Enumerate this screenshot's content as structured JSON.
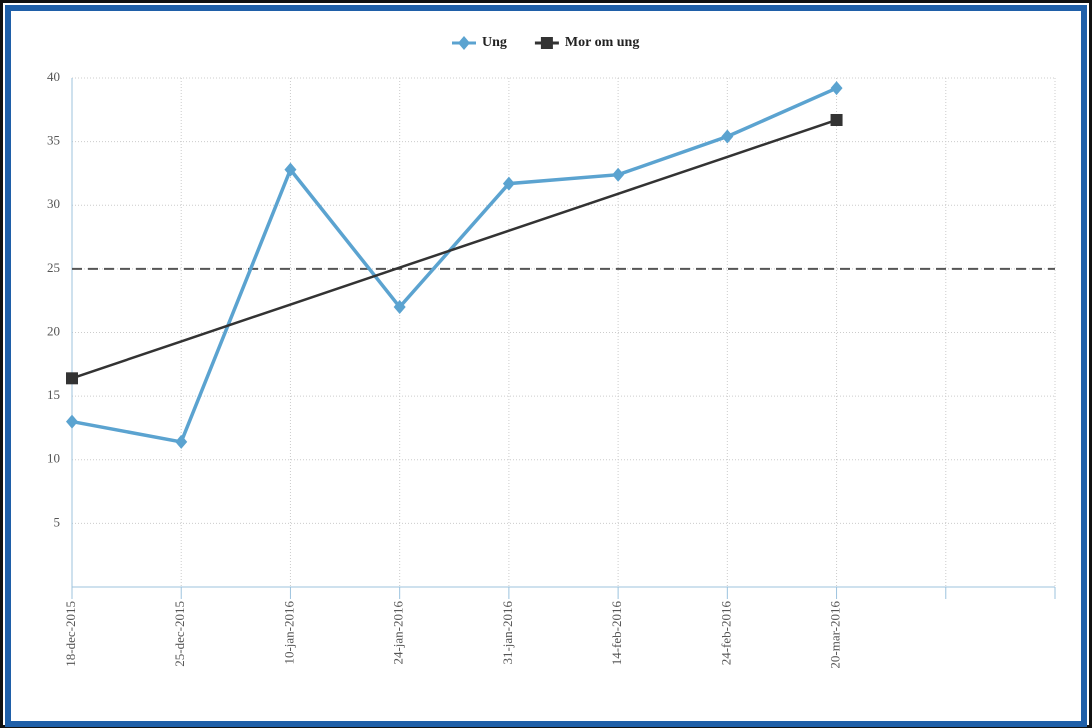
{
  "chart_data": {
    "type": "line",
    "categories": [
      "18-dec-2015",
      "25-dec-2015",
      "10-jan-2016",
      "24-jan-2016",
      "31-jan-2016",
      "14-feb-2016",
      "24-feb-2016",
      "20-mar-2016",
      null,
      null
    ],
    "series": [
      {
        "name": "Ung",
        "color": "#5ba3d0",
        "marker": "diamond",
        "values": [
          13,
          11.4,
          32.8,
          22,
          31.7,
          32.4,
          35.4,
          39.2,
          null,
          null
        ]
      },
      {
        "name": "Mor om ung",
        "color": "#333333",
        "marker": "square",
        "values": [
          16.4,
          19.3,
          22.2,
          25.1,
          28.0,
          30.9,
          33.8,
          36.7,
          null,
          null
        ]
      }
    ],
    "reference_line": 25,
    "ylim": [
      0,
      40
    ],
    "yticks": [
      5,
      10,
      15,
      20,
      25,
      30,
      35,
      40
    ],
    "grid": true,
    "legend": "top"
  }
}
